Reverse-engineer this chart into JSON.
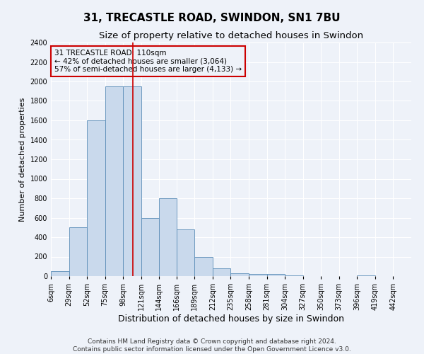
{
  "title": "31, TRECASTLE ROAD, SWINDON, SN1 7BU",
  "subtitle": "Size of property relative to detached houses in Swindon",
  "xlabel": "Distribution of detached houses by size in Swindon",
  "ylabel": "Number of detached properties",
  "footer_line1": "Contains HM Land Registry data © Crown copyright and database right 2024.",
  "footer_line2": "Contains public sector information licensed under the Open Government Licence v3.0.",
  "annotation_title": "31 TRECASTLE ROAD: 110sqm",
  "annotation_line1": "← 42% of detached houses are smaller (3,064)",
  "annotation_line2": "57% of semi-detached houses are larger (4,133) →",
  "vline_x": 110,
  "bar_edges": [
    6,
    29,
    52,
    75,
    98,
    121,
    144,
    166,
    189,
    212,
    235,
    258,
    281,
    304,
    327,
    350,
    373,
    396,
    419,
    442,
    465
  ],
  "bar_heights": [
    50,
    500,
    1600,
    1950,
    1950,
    600,
    800,
    480,
    200,
    80,
    30,
    20,
    20,
    5,
    0,
    0,
    0,
    5,
    0,
    0
  ],
  "bar_color": "#c9d9ec",
  "bar_edgecolor": "#5b8db8",
  "vline_color": "#cc0000",
  "annotation_box_edgecolor": "#cc0000",
  "background_color": "#eef2f9",
  "ylim": [
    0,
    2400
  ],
  "yticks": [
    0,
    200,
    400,
    600,
    800,
    1000,
    1200,
    1400,
    1600,
    1800,
    2000,
    2200,
    2400
  ],
  "grid_color": "#ffffff",
  "title_fontsize": 11,
  "subtitle_fontsize": 9.5,
  "xlabel_fontsize": 9,
  "ylabel_fontsize": 8,
  "tick_fontsize": 7,
  "annotation_fontsize": 7.5,
  "footer_fontsize": 6.5
}
